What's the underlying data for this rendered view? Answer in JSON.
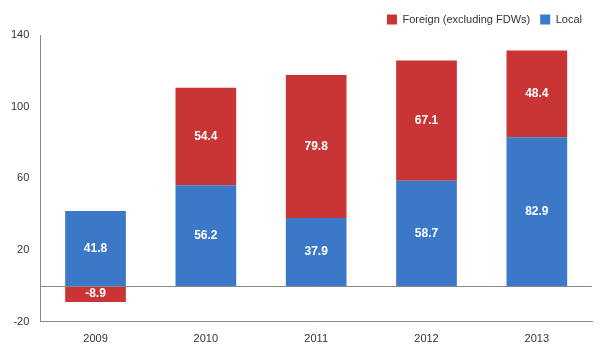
{
  "chart_data": {
    "type": "bar",
    "categories": [
      "2009",
      "2010",
      "2011",
      "2012",
      "2013"
    ],
    "series": [
      {
        "name": "Local",
        "color": "#3b78c8",
        "values": [
          41.8,
          56.2,
          37.9,
          58.7,
          82.9
        ]
      },
      {
        "name": "Foreign (excluding FDWs)",
        "color": "#c93434",
        "values": [
          -8.9,
          54.4,
          79.8,
          67.1,
          48.4
        ]
      }
    ],
    "ylim": [
      -20,
      140
    ],
    "yticks": [
      -20,
      20,
      60,
      100,
      140
    ],
    "stacked": true,
    "data_labels": true,
    "grid": false,
    "legend": "upper right"
  }
}
